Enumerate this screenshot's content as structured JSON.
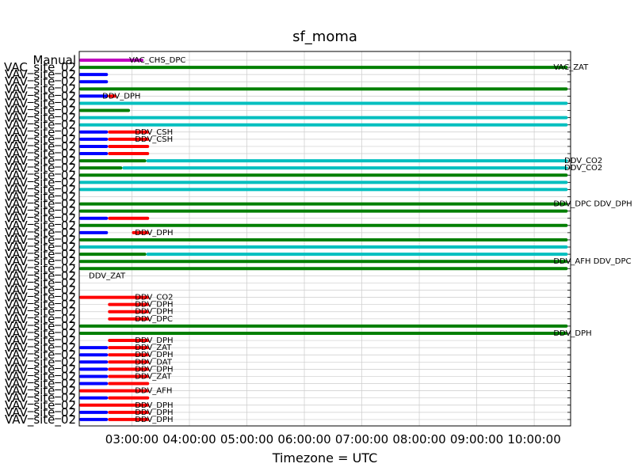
{
  "chart_data": {
    "type": "timeline",
    "title": "sf_moma",
    "xlabel": "Timezone = UTC",
    "ylabel": "",
    "grid": true,
    "x_ticks": [
      "03:00:00",
      "04:00:00",
      "05:00:00",
      "06:00:00",
      "07:00:00",
      "08:00:00",
      "09:00:00",
      "10:00:00"
    ],
    "x_range": [
      "02:05:00",
      "10:38:00"
    ],
    "colors": {
      "magenta": "#bf00bf",
      "green": "#007f00",
      "blue": "#0000ff",
      "red": "#ff0000",
      "cyan": "#00bfbf",
      "grid": "#cccccc"
    },
    "rows": [
      {
        "label": "Manual",
        "segments": [
          {
            "start": "02:05",
            "end": "03:12",
            "color": "magenta"
          }
        ]
      },
      {
        "label": "VAC_site_02",
        "segments": [
          {
            "start": "02:05",
            "end": "10:35",
            "color": "green"
          }
        ]
      },
      {
        "label": "VAV_site_02",
        "segments": [
          {
            "start": "02:05",
            "end": "02:35",
            "color": "blue"
          }
        ]
      },
      {
        "label": "VAV_site_02",
        "segments": [
          {
            "start": "02:05",
            "end": "02:35",
            "color": "blue"
          }
        ]
      },
      {
        "label": "VAV_site_02",
        "segments": [
          {
            "start": "02:05",
            "end": "10:35",
            "color": "green"
          }
        ]
      },
      {
        "label": "VAV_site_02",
        "segments": [
          {
            "start": "02:05",
            "end": "02:35",
            "color": "blue"
          },
          {
            "start": "02:35",
            "end": "02:44",
            "color": "red"
          }
        ]
      },
      {
        "label": "VAV_site_02",
        "segments": [
          {
            "start": "02:05",
            "end": "10:35",
            "color": "cyan"
          }
        ]
      },
      {
        "label": "VAV_site_02",
        "segments": [
          {
            "start": "02:05",
            "end": "02:58",
            "color": "green"
          }
        ]
      },
      {
        "label": "VAV_site_02",
        "segments": [
          {
            "start": "02:05",
            "end": "10:35",
            "color": "cyan"
          }
        ]
      },
      {
        "label": "VAV_site_02",
        "segments": [
          {
            "start": "02:05",
            "end": "10:35",
            "color": "cyan"
          }
        ]
      },
      {
        "label": "VAV_site_02",
        "segments": [
          {
            "start": "02:05",
            "end": "02:35",
            "color": "blue"
          },
          {
            "start": "02:35",
            "end": "03:18",
            "color": "red"
          }
        ]
      },
      {
        "label": "VAV_site_02",
        "segments": [
          {
            "start": "02:05",
            "end": "02:35",
            "color": "blue"
          },
          {
            "start": "02:35",
            "end": "03:18",
            "color": "red"
          }
        ]
      },
      {
        "label": "VAV_site_02",
        "segments": [
          {
            "start": "02:05",
            "end": "02:35",
            "color": "blue"
          },
          {
            "start": "02:35",
            "end": "03:18",
            "color": "red"
          }
        ]
      },
      {
        "label": "VAV_site_02",
        "segments": [
          {
            "start": "02:05",
            "end": "02:35",
            "color": "blue"
          },
          {
            "start": "02:35",
            "end": "03:18",
            "color": "red"
          }
        ]
      },
      {
        "label": "VAV_site_02",
        "segments": [
          {
            "start": "02:05",
            "end": "03:15",
            "color": "green"
          },
          {
            "start": "03:15",
            "end": "10:35",
            "color": "cyan"
          }
        ]
      },
      {
        "label": "VAV_site_02",
        "segments": [
          {
            "start": "02:05",
            "end": "02:50",
            "color": "green"
          },
          {
            "start": "02:50",
            "end": "10:35",
            "color": "cyan"
          }
        ]
      },
      {
        "label": "VAV_site_02",
        "segments": [
          {
            "start": "02:05",
            "end": "10:35",
            "color": "green"
          }
        ]
      },
      {
        "label": "VAV_site_02",
        "segments": [
          {
            "start": "02:05",
            "end": "10:35",
            "color": "cyan"
          }
        ]
      },
      {
        "label": "VAV_site_02",
        "segments": [
          {
            "start": "02:05",
            "end": "10:35",
            "color": "cyan"
          }
        ]
      },
      {
        "label": "VAV_site_02",
        "segments": []
      },
      {
        "label": "VAV_site_02",
        "segments": [
          {
            "start": "02:05",
            "end": "10:35",
            "color": "green"
          }
        ]
      },
      {
        "label": "VAV_site_02",
        "segments": [
          {
            "start": "02:05",
            "end": "10:35",
            "color": "green"
          }
        ]
      },
      {
        "label": "VAV_site_02",
        "segments": [
          {
            "start": "02:05",
            "end": "02:35",
            "color": "blue"
          },
          {
            "start": "02:35",
            "end": "03:18",
            "color": "red"
          }
        ]
      },
      {
        "label": "VAV_site_02",
        "segments": [
          {
            "start": "02:05",
            "end": "10:35",
            "color": "green"
          }
        ]
      },
      {
        "label": "VAV_site_02",
        "segments": [
          {
            "start": "02:05",
            "end": "02:35",
            "color": "blue"
          },
          {
            "start": "03:00",
            "end": "03:18",
            "color": "red"
          }
        ]
      },
      {
        "label": "VAV_site_02",
        "segments": [
          {
            "start": "02:05",
            "end": "10:35",
            "color": "green"
          }
        ]
      },
      {
        "label": "VAV_site_02",
        "segments": [
          {
            "start": "02:05",
            "end": "10:35",
            "color": "cyan"
          }
        ]
      },
      {
        "label": "VAV_site_02",
        "segments": [
          {
            "start": "02:05",
            "end": "03:15",
            "color": "green"
          },
          {
            "start": "03:15",
            "end": "10:35",
            "color": "cyan"
          }
        ]
      },
      {
        "label": "VAV_site_02",
        "segments": [
          {
            "start": "02:05",
            "end": "10:35",
            "color": "green"
          }
        ]
      },
      {
        "label": "VAV_site_02",
        "segments": [
          {
            "start": "02:05",
            "end": "10:35",
            "color": "green"
          }
        ]
      },
      {
        "label": "VAV_site_02",
        "segments": []
      },
      {
        "label": "VAV_site_02",
        "segments": []
      },
      {
        "label": "VAV_site_02",
        "segments": []
      },
      {
        "label": "VAV_site_02",
        "segments": [
          {
            "start": "02:05",
            "end": "03:18",
            "color": "red"
          }
        ]
      },
      {
        "label": "VAV_site_02",
        "segments": [
          {
            "start": "02:35",
            "end": "03:18",
            "color": "red"
          }
        ]
      },
      {
        "label": "VAV_site_02",
        "segments": [
          {
            "start": "02:35",
            "end": "03:18",
            "color": "red"
          }
        ]
      },
      {
        "label": "VAV_site_02",
        "segments": [
          {
            "start": "02:35",
            "end": "03:18",
            "color": "red"
          }
        ]
      },
      {
        "label": "VAV_site_02",
        "segments": [
          {
            "start": "02:05",
            "end": "10:35",
            "color": "green"
          }
        ]
      },
      {
        "label": "VAV_site_02",
        "segments": [
          {
            "start": "02:05",
            "end": "10:35",
            "color": "green"
          }
        ]
      },
      {
        "label": "VAV_site_02",
        "segments": [
          {
            "start": "02:35",
            "end": "03:18",
            "color": "red"
          }
        ]
      },
      {
        "label": "VAV_site_02",
        "segments": [
          {
            "start": "02:05",
            "end": "02:35",
            "color": "blue"
          },
          {
            "start": "02:35",
            "end": "03:18",
            "color": "red"
          }
        ]
      },
      {
        "label": "VAV_site_02",
        "segments": [
          {
            "start": "02:05",
            "end": "02:35",
            "color": "blue"
          },
          {
            "start": "02:35",
            "end": "03:18",
            "color": "red"
          }
        ]
      },
      {
        "label": "VAV_site_02",
        "segments": [
          {
            "start": "02:05",
            "end": "02:35",
            "color": "blue"
          },
          {
            "start": "02:35",
            "end": "03:18",
            "color": "red"
          }
        ]
      },
      {
        "label": "VAV_site_02",
        "segments": [
          {
            "start": "02:05",
            "end": "02:35",
            "color": "blue"
          },
          {
            "start": "02:35",
            "end": "03:18",
            "color": "red"
          }
        ]
      },
      {
        "label": "VAV_site_02",
        "segments": [
          {
            "start": "02:05",
            "end": "02:35",
            "color": "blue"
          },
          {
            "start": "02:35",
            "end": "03:18",
            "color": "red"
          }
        ]
      },
      {
        "label": "VAV_site_02",
        "segments": [
          {
            "start": "02:05",
            "end": "02:35",
            "color": "blue"
          },
          {
            "start": "02:35",
            "end": "03:18",
            "color": "red"
          }
        ]
      },
      {
        "label": "VAV_site_02",
        "segments": [
          {
            "start": "02:05",
            "end": "03:18",
            "color": "red"
          }
        ]
      },
      {
        "label": "VAV_site_02",
        "segments": [
          {
            "start": "02:05",
            "end": "02:35",
            "color": "blue"
          },
          {
            "start": "02:35",
            "end": "03:18",
            "color": "red"
          }
        ]
      },
      {
        "label": "VAV_site_02",
        "segments": [
          {
            "start": "02:05",
            "end": "03:18",
            "color": "red"
          }
        ]
      },
      {
        "label": "VAV_site_02",
        "segments": [
          {
            "start": "02:05",
            "end": "02:35",
            "color": "blue"
          },
          {
            "start": "02:35",
            "end": "03:18",
            "color": "red"
          }
        ]
      },
      {
        "label": "VAV_site_02",
        "segments": [
          {
            "start": "02:05",
            "end": "02:35",
            "color": "blue"
          },
          {
            "start": "02:35",
            "end": "03:18",
            "color": "red"
          }
        ]
      }
    ],
    "annotations": [
      {
        "text": "VAC_CHS_DPC",
        "row": 0
      },
      {
        "text": "VAC_ZAT",
        "row": 1
      },
      {
        "text": "DDV_DPH",
        "row": 5
      },
      {
        "text": "DDV_CSH",
        "row": 10
      },
      {
        "text": "DDV_CSH",
        "row": 11
      },
      {
        "text": "DDV_CO2",
        "row": 14,
        "at_end": true
      },
      {
        "text": "DDV_CO2",
        "row": 15,
        "at_end": true
      },
      {
        "text": "DDV_DPC DDV_DPH",
        "row": 20
      },
      {
        "text": "DDV_DPH",
        "row": 24
      },
      {
        "text": "DDV_AFH DDV_DPC",
        "row": 28
      },
      {
        "text": "DDV_ZAT",
        "row": 30
      },
      {
        "text": "DDV_CO2",
        "row": 33
      },
      {
        "text": "DDV_DPH",
        "row": 34
      },
      {
        "text": "DDV_DPH",
        "row": 35
      },
      {
        "text": "DDV_DPC",
        "row": 36
      },
      {
        "text": "DDV_DPH",
        "row": 38
      },
      {
        "text": "DDV_DPH",
        "row": 39
      },
      {
        "text": "DDV_ZAT",
        "row": 40
      },
      {
        "text": "DDV_DPH",
        "row": 41
      },
      {
        "text": "DDV_DAT",
        "row": 42
      },
      {
        "text": "DDV_DPH",
        "row": 43
      },
      {
        "text": "DDV_ZAT",
        "row": 44
      },
      {
        "text": "DDV_AFH",
        "row": 46
      },
      {
        "text": "DDV_DPH",
        "row": 48
      },
      {
        "text": "DDV_DPH",
        "row": 49
      },
      {
        "text": "DDV_DPH",
        "row": 50
      }
    ]
  }
}
